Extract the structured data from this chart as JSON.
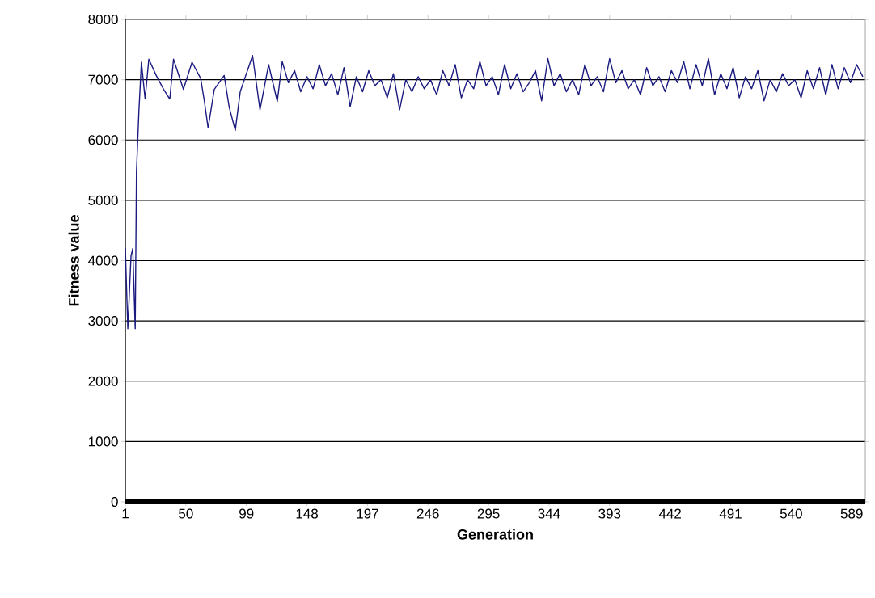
{
  "chart_data": {
    "type": "line",
    "xlabel": "Generation",
    "ylabel": "Fitness value",
    "color": "#1a1a80",
    "grid": "y",
    "xlim": [
      1,
      600
    ],
    "ylim": [
      0,
      8000
    ],
    "xticks": [
      1,
      50,
      99,
      148,
      197,
      246,
      295,
      344,
      393,
      442,
      491,
      540,
      589
    ],
    "yticks": [
      0,
      1000,
      2000,
      3000,
      4000,
      5000,
      6000,
      7000,
      8000
    ],
    "x": [
      1,
      3,
      5.6,
      7,
      9,
      10,
      12,
      14,
      17,
      20,
      26,
      32,
      37,
      40,
      48,
      55,
      62,
      65,
      68,
      73,
      81,
      85,
      90,
      94,
      104,
      110,
      117,
      124,
      128,
      133,
      138,
      143,
      148,
      153,
      158,
      163,
      168,
      173,
      178,
      183,
      188,
      193,
      198,
      203,
      208,
      213,
      218,
      223,
      228,
      233,
      238,
      243,
      248,
      253,
      258,
      263,
      268,
      273,
      278,
      283,
      288,
      293,
      298,
      303,
      308,
      313,
      318,
      323,
      328,
      333,
      338,
      343,
      348,
      353,
      358,
      363,
      368,
      373,
      378,
      383,
      388,
      393,
      398,
      403,
      408,
      413,
      418,
      423,
      428,
      433,
      438,
      443,
      448,
      453,
      458,
      463,
      468,
      473,
      478,
      483,
      488,
      493,
      498,
      503,
      508,
      513,
      518,
      523,
      528,
      533,
      538,
      543,
      548,
      553,
      558,
      563,
      568,
      573,
      578,
      583,
      588,
      593,
      598
    ],
    "values": [
      4210,
      2870,
      4080,
      4200,
      2870,
      5470,
      6490,
      7290,
      6680,
      7340,
      7070,
      6840,
      6680,
      7340,
      6840,
      7290,
      7020,
      6640,
      6200,
      6840,
      7070,
      6550,
      6160,
      6800,
      7400,
      6500,
      7250,
      6640,
      7300,
      6950,
      7150,
      6800,
      7050,
      6850,
      7250,
      6900,
      7100,
      6750,
      7200,
      6550,
      7050,
      6800,
      7150,
      6900,
      7000,
      6700,
      7100,
      6500,
      7000,
      6800,
      7050,
      6850,
      7000,
      6750,
      7150,
      6900,
      7250,
      6700,
      7000,
      6850,
      7300,
      6900,
      7050,
      6750,
      7250,
      6850,
      7100,
      6800,
      6950,
      7150,
      6650,
      7350,
      6900,
      7100,
      6800,
      7000,
      6750,
      7250,
      6900,
      7050,
      6800,
      7350,
      6950,
      7150,
      6850,
      7000,
      6750,
      7200,
      6900,
      7050,
      6800,
      7150,
      6950,
      7300,
      6850,
      7250,
      6900,
      7350,
      6750,
      7100,
      6850,
      7200,
      6700,
      7050,
      6850,
      7150,
      6650,
      7000,
      6800,
      7100,
      6900,
      7000,
      6700,
      7150,
      6850,
      7200,
      6750,
      7250,
      6850,
      7200,
      6950,
      7250,
      7050
    ]
  }
}
